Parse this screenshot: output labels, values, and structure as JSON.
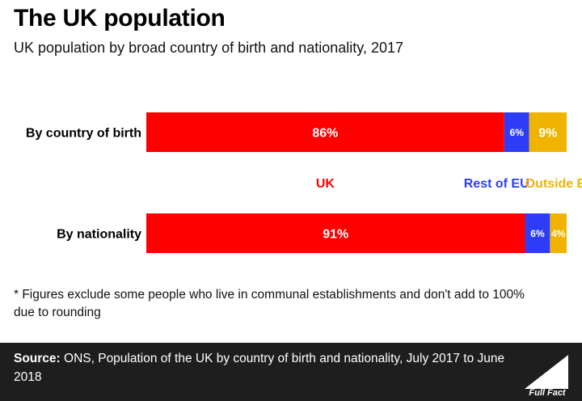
{
  "title": "The UK population",
  "subtitle": "UK population by broad country of birth and nationality, 2017",
  "footnote": "* Figures exclude some people who live in communal establishments and don't add to 100% due to rounding",
  "source": {
    "label": "Source:",
    "text": " ONS, Population of the UK by country of birth and nationality, July 2017 to June 2018"
  },
  "logo_text": "Full Fact",
  "chart_data": {
    "type": "bar",
    "orientation": "horizontal",
    "stacked": true,
    "categories": [
      "By country of birth",
      "By nationality"
    ],
    "series": [
      {
        "name": "UK",
        "values": [
          86,
          91
        ],
        "labels": [
          "86%",
          "91%"
        ],
        "color": "#ff0000"
      },
      {
        "name": "Rest of EU",
        "values": [
          6,
          6
        ],
        "labels": [
          "6%",
          "6%"
        ],
        "color": "#2e3df5"
      },
      {
        "name": "Outside EU",
        "values": [
          9,
          4
        ],
        "labels": [
          "9%",
          "4%"
        ],
        "color": "#f0b400"
      }
    ],
    "xlim": [
      0,
      101
    ],
    "legend_position": "between-bars",
    "grid": false
  }
}
